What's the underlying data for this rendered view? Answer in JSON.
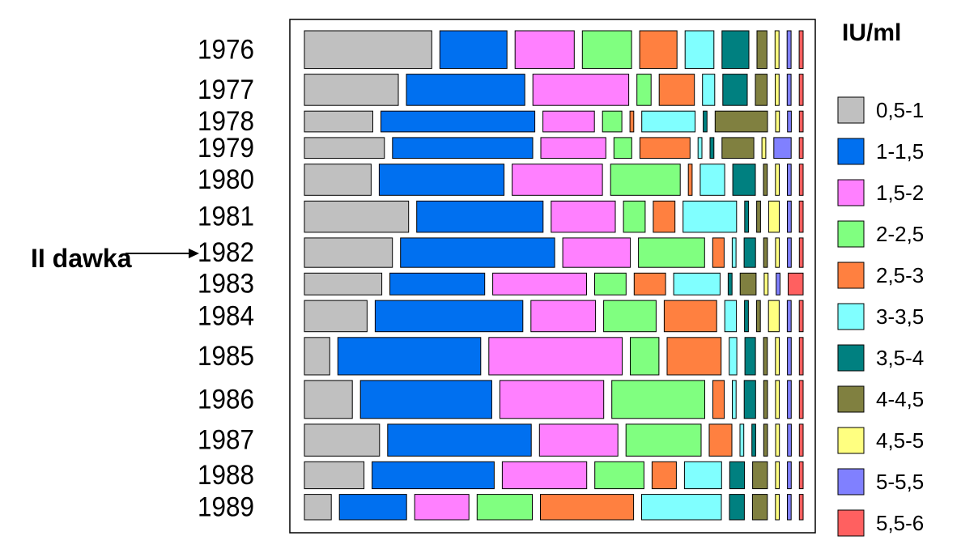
{
  "chart_data": {
    "type": "mosaic",
    "title": "",
    "legend_title": "IU/ml",
    "annotation": "II dawka",
    "annotation_target": "1982",
    "categories": [
      "0,5-1",
      "1-1,5",
      "1,5-2",
      "2-2,5",
      "2,5-3",
      "3-3,5",
      "3,5-4",
      "4-4,5",
      "4,5-5",
      "5-5,5",
      "5,5-6"
    ],
    "colors": [
      "#c0c0c0",
      "#0070f0",
      "#ff80ff",
      "#80ff80",
      "#ff8040",
      "#80ffff",
      "#008080",
      "#808040",
      "#ffff80",
      "#8080ff",
      "#ff6060"
    ],
    "years": [
      "1976",
      "1977",
      "1978",
      "1979",
      "1980",
      "1981",
      "1982",
      "1983",
      "1984",
      "1985",
      "1986",
      "1987",
      "1988",
      "1989"
    ],
    "row_weights": [
      12.3,
      10.2,
      6.8,
      6.8,
      10.2,
      10.2,
      9.6,
      7.1,
      10.2,
      12.2,
      12.4,
      10.4,
      8.8,
      8.3
    ],
    "values": [
      [
        25.6,
        13.5,
        11.9,
        9.9,
        7.5,
        5.8,
        5.4,
        2.0,
        0.8,
        0.8,
        0.8
      ],
      [
        19.2,
        24.2,
        19.6,
        2.9,
        7.2,
        2.5,
        5.0,
        2.4,
        0.8,
        0.8,
        0.8
      ],
      [
        14.5,
        32.6,
        10.9,
        4.1,
        0.8,
        11.3,
        0.8,
        11.1,
        0.8,
        0.8,
        0.8
      ],
      [
        16.6,
        29.1,
        13.5,
        3.7,
        10.4,
        0.8,
        0.8,
        6.6,
        0.8,
        3.6,
        0.8
      ],
      [
        13.9,
        26.0,
        18.8,
        14.5,
        0.8,
        5.1,
        4.7,
        0.8,
        0.8,
        0.8,
        0.8
      ],
      [
        21.6,
        26.2,
        13.3,
        4.5,
        4.5,
        11.1,
        0.8,
        0.8,
        2.2,
        0.8,
        0.8
      ],
      [
        18.5,
        32.4,
        14.2,
        13.9,
        2.4,
        0.8,
        2.4,
        0.8,
        0.8,
        0.8,
        0.8
      ],
      [
        16.0,
        19.6,
        19.4,
        6.5,
        6.5,
        9.6,
        0.8,
        3.3,
        0.8,
        0.8,
        3.1
      ],
      [
        12.9,
        30.4,
        13.3,
        10.8,
        10.8,
        2.4,
        0.8,
        0.8,
        2.2,
        0.8,
        0.8
      ],
      [
        5.3,
        29.9,
        27.9,
        6.0,
        11.3,
        1.6,
        2.2,
        0.8,
        0.8,
        0.8,
        0.8
      ],
      [
        10.1,
        27.7,
        21.9,
        19.6,
        2.4,
        0.8,
        2.4,
        0.8,
        0.8,
        0.8,
        0.8
      ],
      [
        15.9,
        30.4,
        16.6,
        15.9,
        4.8,
        0.8,
        0.8,
        0.8,
        0.8,
        0.8,
        0.8
      ],
      [
        12.5,
        25.6,
        17.7,
        10.3,
        5.1,
        7.8,
        3.1,
        3.1,
        0.8,
        0.8,
        0.8
      ],
      [
        5.6,
        14.0,
        11.3,
        11.5,
        19.4,
        16.6,
        3.1,
        3.1,
        0.8,
        0.8,
        0.8
      ]
    ]
  }
}
